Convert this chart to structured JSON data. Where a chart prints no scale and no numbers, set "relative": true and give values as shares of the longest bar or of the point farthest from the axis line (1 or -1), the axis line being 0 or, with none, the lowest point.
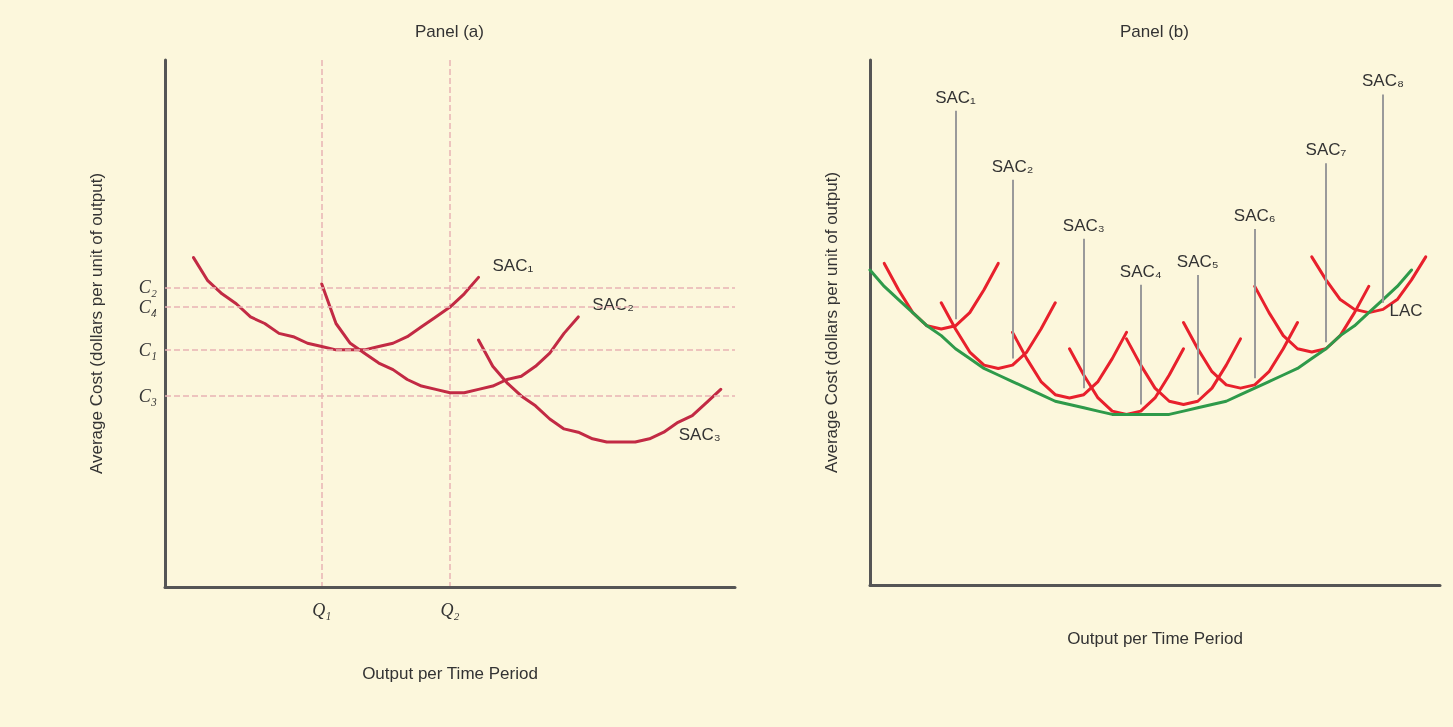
{
  "chart_data": [
    {
      "type": "line",
      "relative": true,
      "title": "Panel (a)",
      "xlabel": "Output per Time Period",
      "ylabel": "Average Cost (dollars per unit of output)",
      "marker": "none",
      "line_style": "solid",
      "categories": [
        null,
        null,
        null,
        null,
        null,
        null,
        null,
        null,
        null,
        null,
        null,
        "Q₁",
        null,
        null,
        null,
        null,
        null,
        null,
        null,
        null,
        "Q₂",
        null,
        null,
        null,
        null,
        null,
        null,
        null,
        null,
        null,
        null,
        null,
        null,
        null,
        null,
        null,
        null,
        null,
        null,
        null,
        null
      ],
      "series": [
        {
          "name": "SAC₁",
          "color": "#c22a44",
          "values": [
            null,
            null,
            1.0,
            0.93,
            0.89,
            0.86,
            0.82,
            0.8,
            0.77,
            0.76,
            0.74,
            0.73,
            0.72,
            0.72,
            0.72,
            0.73,
            0.74,
            0.76,
            0.79,
            0.82,
            0.85,
            0.89,
            0.94,
            null,
            null,
            null,
            null,
            null,
            null,
            null,
            null,
            null,
            null,
            null,
            null,
            null,
            null,
            null,
            null,
            null,
            null
          ]
        },
        {
          "name": "SAC₂",
          "color": "#c22a44",
          "values": [
            null,
            null,
            null,
            null,
            null,
            null,
            null,
            null,
            null,
            null,
            null,
            0.92,
            0.8,
            0.74,
            0.71,
            0.68,
            0.66,
            0.63,
            0.61,
            0.6,
            0.59,
            0.59,
            0.6,
            0.61,
            0.63,
            0.64,
            0.67,
            0.71,
            0.77,
            0.82,
            null,
            null,
            null,
            null,
            null,
            null,
            null,
            null,
            null,
            null,
            null
          ]
        },
        {
          "name": "SAC₃",
          "color": "#c22a44",
          "values": [
            null,
            null,
            null,
            null,
            null,
            null,
            null,
            null,
            null,
            null,
            null,
            null,
            null,
            null,
            null,
            null,
            null,
            null,
            null,
            null,
            null,
            null,
            0.75,
            0.67,
            0.62,
            0.58,
            0.55,
            0.51,
            0.48,
            0.47,
            0.45,
            0.44,
            0.44,
            0.44,
            0.45,
            0.47,
            0.5,
            0.52,
            0.56,
            0.6,
            null
          ]
        }
      ],
      "ref_lines": [
        {
          "axis": "y",
          "value": 0.91,
          "label": "C₂",
          "color": "#e8b4b4",
          "line_style": "dashed"
        },
        {
          "axis": "y",
          "value": 0.85,
          "label": "C₄",
          "color": "#e8b4b4",
          "line_style": "dashed"
        },
        {
          "axis": "y",
          "value": 0.72,
          "label": "C₁",
          "color": "#e8b4b4",
          "line_style": "dashed"
        },
        {
          "axis": "y",
          "value": 0.58,
          "label": "C₃",
          "color": "#e8b4b4",
          "line_style": "dashed"
        }
      ]
    },
    {
      "type": "line",
      "relative": true,
      "title": "Panel (b)",
      "xlabel": "Output per Time Period",
      "ylabel": "Average Cost (dollars per unit of output)",
      "marker": "none",
      "line_style": "solid",
      "categories": [
        null,
        null,
        null,
        null,
        null,
        null,
        null,
        null,
        null,
        null,
        null,
        null,
        null,
        null,
        null,
        null,
        null,
        null,
        null,
        null,
        null,
        null,
        null,
        null,
        null,
        null,
        null,
        null,
        null,
        null,
        null,
        null,
        null,
        null,
        null,
        null,
        null,
        null,
        null,
        null,
        null
      ],
      "series": [
        {
          "name": "SAC₁",
          "color": "#e8202c",
          "values": [
            null,
            0.98,
            0.9,
            0.83,
            0.79,
            0.78,
            0.79,
            0.83,
            0.9,
            0.98,
            null,
            null,
            null,
            null,
            null,
            null,
            null,
            null,
            null,
            null,
            null,
            null,
            null,
            null,
            null,
            null,
            null,
            null,
            null,
            null,
            null,
            null,
            null,
            null,
            null,
            null,
            null,
            null,
            null,
            null,
            null
          ]
        },
        {
          "name": "SAC₂",
          "color": "#e8202c",
          "values": [
            null,
            null,
            null,
            null,
            null,
            0.86,
            0.78,
            0.71,
            0.67,
            0.66,
            0.67,
            0.71,
            0.78,
            0.86,
            null,
            null,
            null,
            null,
            null,
            null,
            null,
            null,
            null,
            null,
            null,
            null,
            null,
            null,
            null,
            null,
            null,
            null,
            null,
            null,
            null,
            null,
            null,
            null,
            null,
            null,
            null
          ]
        },
        {
          "name": "SAC₃",
          "color": "#e8202c",
          "values": [
            null,
            null,
            null,
            null,
            null,
            null,
            null,
            null,
            null,
            null,
            0.77,
            0.69,
            0.62,
            0.58,
            0.57,
            0.58,
            0.62,
            0.69,
            0.77,
            null,
            null,
            null,
            null,
            null,
            null,
            null,
            null,
            null,
            null,
            null,
            null,
            null,
            null,
            null,
            null,
            null,
            null,
            null,
            null,
            null,
            null
          ]
        },
        {
          "name": "SAC₄",
          "color": "#e8202c",
          "values": [
            null,
            null,
            null,
            null,
            null,
            null,
            null,
            null,
            null,
            null,
            null,
            null,
            null,
            null,
            0.72,
            0.64,
            0.57,
            0.53,
            0.52,
            0.53,
            0.57,
            0.64,
            0.72,
            null,
            null,
            null,
            null,
            null,
            null,
            null,
            null,
            null,
            null,
            null,
            null,
            null,
            null,
            null,
            null,
            null,
            null
          ]
        },
        {
          "name": "SAC₅",
          "color": "#e8202c",
          "values": [
            null,
            null,
            null,
            null,
            null,
            null,
            null,
            null,
            null,
            null,
            null,
            null,
            null,
            null,
            null,
            null,
            null,
            null,
            0.75,
            0.67,
            0.6,
            0.56,
            0.55,
            0.56,
            0.6,
            0.67,
            0.75,
            null,
            null,
            null,
            null,
            null,
            null,
            null,
            null,
            null,
            null,
            null,
            null,
            null,
            null
          ]
        },
        {
          "name": "SAC₆",
          "color": "#e8202c",
          "values": [
            null,
            null,
            null,
            null,
            null,
            null,
            null,
            null,
            null,
            null,
            null,
            null,
            null,
            null,
            null,
            null,
            null,
            null,
            null,
            null,
            null,
            null,
            0.8,
            0.72,
            0.65,
            0.61,
            0.6,
            0.61,
            0.65,
            0.72,
            0.8,
            null,
            null,
            null,
            null,
            null,
            null,
            null,
            null,
            null,
            null
          ]
        },
        {
          "name": "SAC₇",
          "color": "#e8202c",
          "values": [
            null,
            null,
            null,
            null,
            null,
            null,
            null,
            null,
            null,
            null,
            null,
            null,
            null,
            null,
            null,
            null,
            null,
            null,
            null,
            null,
            null,
            null,
            null,
            null,
            null,
            null,
            null,
            0.91,
            0.83,
            0.76,
            0.72,
            0.71,
            0.72,
            0.76,
            0.83,
            0.91,
            null,
            null,
            null,
            null,
            null
          ]
        },
        {
          "name": "SAC₈",
          "color": "#e8202c",
          "values": [
            null,
            null,
            null,
            null,
            null,
            null,
            null,
            null,
            null,
            null,
            null,
            null,
            null,
            null,
            null,
            null,
            null,
            null,
            null,
            null,
            null,
            null,
            null,
            null,
            null,
            null,
            null,
            null,
            null,
            null,
            null,
            1.0,
            0.93,
            0.87,
            0.84,
            0.83,
            0.84,
            0.87,
            0.93,
            1.0,
            null
          ]
        },
        {
          "name": "LAC",
          "color": "#2e9a4a",
          "values": [
            0.96,
            0.91,
            0.87,
            0.83,
            0.79,
            0.76,
            0.72,
            0.69,
            0.66,
            0.64,
            0.62,
            0.6,
            0.58,
            0.56,
            0.55,
            0.54,
            0.53,
            0.52,
            0.52,
            0.52,
            0.52,
            0.52,
            0.53,
            0.54,
            0.55,
            0.56,
            0.58,
            0.6,
            0.62,
            0.64,
            0.66,
            0.69,
            0.72,
            0.76,
            0.79,
            0.83,
            0.87,
            0.91,
            0.96,
            null,
            null
          ]
        }
      ]
    }
  ]
}
